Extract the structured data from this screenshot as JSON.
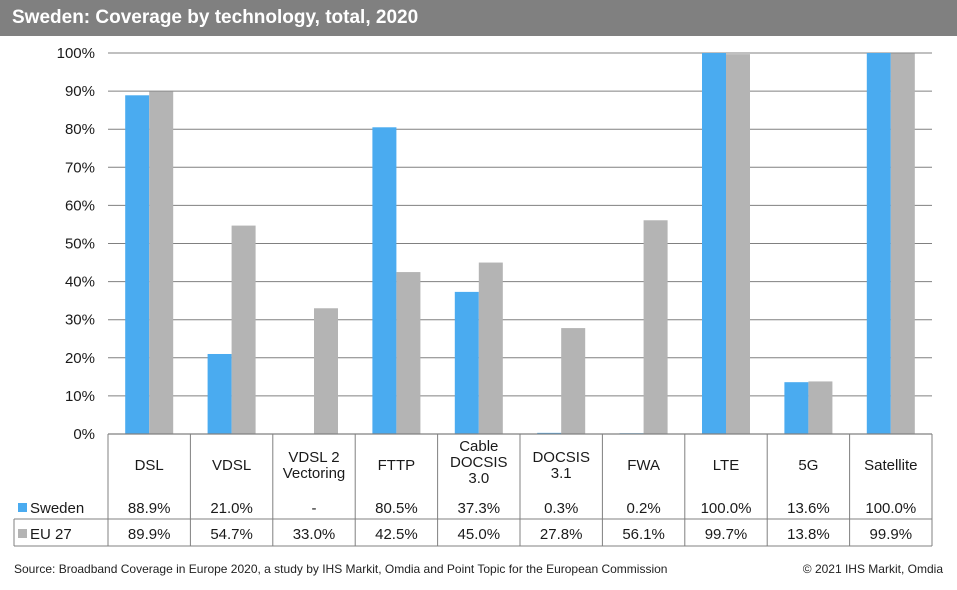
{
  "title": "Sweden: Coverage by technology, total, 2020",
  "source": "Source: Broadband Coverage in Europe 2020, a study by IHS Markit, Omdia and Point Topic for the European Commission",
  "copyright": "© 2021 IHS Markit, Omdia",
  "colors": {
    "sweden": "#4aabf0",
    "eu27": "#b4b4b4",
    "title_bg": "#808080",
    "grid": "#808080"
  },
  "chart_data": {
    "type": "bar",
    "categories": [
      [
        "DSL"
      ],
      [
        "VDSL"
      ],
      [
        "VDSL 2",
        "Vectoring"
      ],
      [
        "FTTP"
      ],
      [
        "Cable",
        "DOCSIS",
        "3.0"
      ],
      [
        "DOCSIS",
        "3.1"
      ],
      [
        "FWA"
      ],
      [
        "LTE"
      ],
      [
        "5G"
      ],
      [
        "Satellite"
      ]
    ],
    "series": [
      {
        "name": "Sweden",
        "values": [
          88.9,
          21.0,
          null,
          80.5,
          37.3,
          0.3,
          0.2,
          100.0,
          13.6,
          100.0
        ],
        "labels": [
          "88.9%",
          "21.0%",
          "-",
          "80.5%",
          "37.3%",
          "0.3%",
          "0.2%",
          "100.0%",
          "13.6%",
          "100.0%"
        ]
      },
      {
        "name": "EU 27",
        "values": [
          89.9,
          54.7,
          33.0,
          42.5,
          45.0,
          27.8,
          56.1,
          99.7,
          13.8,
          99.9
        ],
        "labels": [
          "89.9%",
          "54.7%",
          "33.0%",
          "42.5%",
          "45.0%",
          "27.8%",
          "56.1%",
          "99.7%",
          "13.8%",
          "99.9%"
        ]
      }
    ],
    "yticks": [
      "0%",
      "10%",
      "20%",
      "30%",
      "40%",
      "50%",
      "60%",
      "70%",
      "80%",
      "90%",
      "100%"
    ],
    "ylim": [
      0,
      100
    ],
    "grid": true,
    "legend": "data-table"
  }
}
